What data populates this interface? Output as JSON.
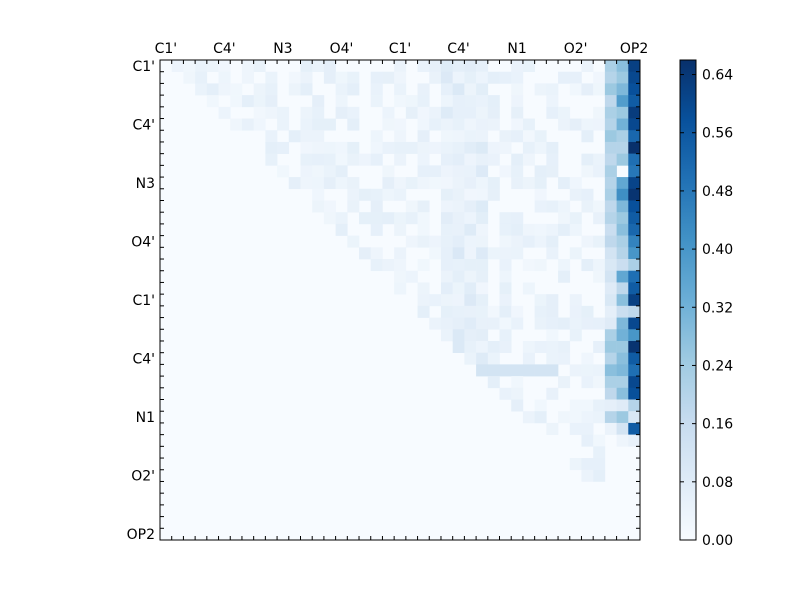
{
  "chart_data": {
    "type": "heatmap",
    "title": "",
    "xlabel": "",
    "ylabel": "",
    "x_tick_labels": [
      "C1'",
      "C4'",
      "N3",
      "O4'",
      "C1'",
      "C4'",
      "N1",
      "O2'",
      "OP2"
    ],
    "y_tick_labels": [
      "C1'",
      "C4'",
      "N3",
      "O4'",
      "C1'",
      "C4'",
      "N1",
      "O2'",
      "OP2"
    ],
    "grid_size": 41,
    "colormap": "Blues",
    "colorbar": {
      "min": 0.0,
      "max": 0.66,
      "ticks": [
        "0.00",
        "0.08",
        "0.16",
        "0.24",
        "0.32",
        "0.40",
        "0.48",
        "0.56",
        "0.64"
      ],
      "placement": "right"
    },
    "colors": {
      "low": "#f7fbff",
      "high": "#08306b"
    },
    "note_values": "upper-triangular matrix; lower triangle is zero",
    "column_profile": {
      "last_col_values": [
        0.62,
        0.6,
        0.58,
        0.55,
        0.63,
        0.6,
        0.52,
        0.66,
        0.5,
        0.48,
        0.61,
        0.65,
        0.58,
        0.55,
        0.52,
        0.45,
        0.4,
        0.22,
        0.5,
        0.55,
        0.62,
        0.18,
        0.6,
        0.4,
        0.65,
        0.55,
        0.5,
        0.6,
        0.58,
        0.2,
        0.1,
        0.55,
        0.05,
        0.0,
        0.0,
        0.0,
        0.0,
        0.0,
        0.0,
        0.0,
        0.0
      ],
      "second_last_col_values": [
        0.28,
        0.25,
        0.3,
        0.38,
        0.25,
        0.32,
        0.22,
        0.2,
        0.25,
        0.0,
        0.35,
        0.42,
        0.3,
        0.25,
        0.28,
        0.22,
        0.2,
        0.15,
        0.35,
        0.18,
        0.28,
        0.15,
        0.3,
        0.32,
        0.25,
        0.28,
        0.3,
        0.22,
        0.28,
        0.08,
        0.25,
        0.12,
        0.03,
        0.0,
        0.0,
        0.0,
        0.0,
        0.0,
        0.0,
        0.0,
        0.0
      ],
      "third_last_col_values": [
        0.22,
        0.2,
        0.25,
        0.18,
        0.22,
        0.2,
        0.25,
        0.2,
        0.18,
        0.22,
        0.2,
        0.22,
        0.18,
        0.2,
        0.15,
        0.18,
        0.12,
        0.1,
        0.12,
        0.08,
        0.1,
        0.06,
        0.08,
        0.22,
        0.25,
        0.2,
        0.28,
        0.22,
        0.18,
        0.06,
        0.2,
        0.04,
        0.0,
        0.0,
        0.0,
        0.0,
        0.0,
        0.0,
        0.0,
        0.0,
        0.0
      ]
    }
  }
}
